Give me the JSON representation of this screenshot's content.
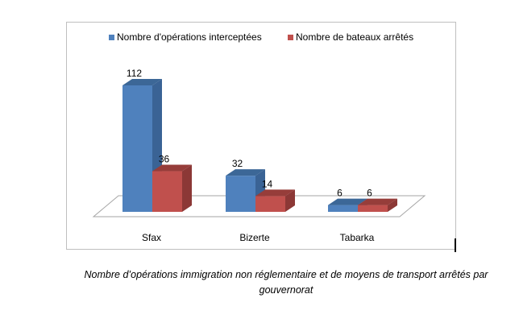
{
  "chart_data": {
    "type": "bar",
    "style": "3d-clustered-column",
    "categories": [
      "Sfax",
      "Bizerte",
      "Tabarka"
    ],
    "series": [
      {
        "name": "Nombre d'opérations interceptées",
        "values": [
          112,
          32,
          6
        ],
        "color": "#4f81bd",
        "side": "#3a6395",
        "top": "#3c6797"
      },
      {
        "name": "Nombre de bateaux arrêtés",
        "values": [
          36,
          14,
          6
        ],
        "color": "#c0504d",
        "side": "#8c3836",
        "top": "#963d3a"
      }
    ],
    "ylim": [
      0,
      112
    ],
    "grid": false,
    "legend_position": "top"
  },
  "caption": {
    "line1": "Nombre d’opérations immigration non réglementaire et de moyens de transport arrêtés par",
    "line2": "gouvernorat"
  }
}
